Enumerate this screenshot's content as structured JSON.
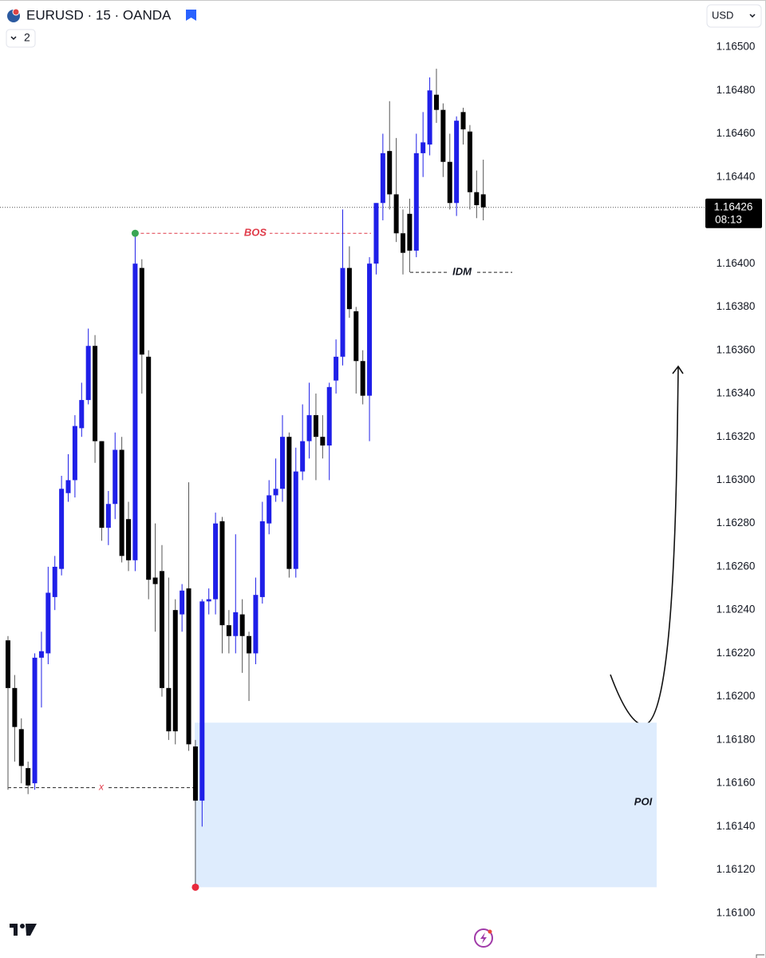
{
  "header": {
    "symbol": "EURUSD · 15 · OANDA",
    "layout_count": "2",
    "currency": "USD"
  },
  "chart_data": {
    "type": "candlestick",
    "up_color": "#1f1fe8",
    "down_color": "#000000",
    "ylim": [
      1.1609,
      1.1652
    ],
    "yticks": [
      {
        "value": 1.165,
        "label": "1.16500"
      },
      {
        "value": 1.1648,
        "label": "1.16480"
      },
      {
        "value": 1.1646,
        "label": "1.16460"
      },
      {
        "value": 1.1644,
        "label": "1.16440"
      },
      {
        "value": 1.1642,
        "label": "1.16420"
      },
      {
        "value": 1.164,
        "label": "1.16400"
      },
      {
        "value": 1.1638,
        "label": "1.16380"
      },
      {
        "value": 1.1636,
        "label": "1.16360"
      },
      {
        "value": 1.1634,
        "label": "1.16340"
      },
      {
        "value": 1.1632,
        "label": "1.16320"
      },
      {
        "value": 1.163,
        "label": "1.16300"
      },
      {
        "value": 1.1628,
        "label": "1.16280"
      },
      {
        "value": 1.1626,
        "label": "1.16260"
      },
      {
        "value": 1.1624,
        "label": "1.16240"
      },
      {
        "value": 1.1622,
        "label": "1.16220"
      },
      {
        "value": 1.162,
        "label": "1.16200"
      },
      {
        "value": 1.1618,
        "label": "1.16180"
      },
      {
        "value": 1.1616,
        "label": "1.16160"
      },
      {
        "value": 1.1614,
        "label": "1.16140"
      },
      {
        "value": 1.1612,
        "label": "1.16120"
      },
      {
        "value": 1.161,
        "label": "1.16100"
      }
    ],
    "open": [
      1.16226,
      1.16204,
      1.16185,
      1.16167,
      1.1616,
      1.16218,
      1.1622,
      1.16246,
      1.16259,
      1.16294,
      1.163,
      1.16324,
      1.16337,
      1.16362,
      1.16318,
      1.16278,
      1.16289,
      1.16314,
      1.16282,
      1.16263,
      1.16398,
      1.16357,
      1.16255,
      1.16258,
      1.16204,
      1.1624,
      1.16238,
      1.1625,
      1.16177,
      1.16152,
      1.16244,
      1.16245,
      1.16281,
      1.16233,
      1.16228,
      1.16238,
      1.16228,
      1.1622,
      1.16246,
      1.1628,
      1.16293,
      1.16296,
      1.1632,
      1.16259,
      1.16304,
      1.16318,
      1.1633,
      1.1632,
      1.16316,
      1.16346,
      1.16357,
      1.16398,
      1.16378,
      1.16355,
      1.16339,
      1.164,
      1.16428,
      1.16452,
      1.16432,
      1.16414,
      1.16423,
      1.16406,
      1.16451,
      1.16455,
      1.16478,
      1.16471,
      1.16447,
      1.16428,
      1.1647,
      1.16461,
      1.16433,
      1.16432
    ],
    "close": [
      1.16204,
      1.16186,
      1.16168,
      1.16159,
      1.16218,
      1.16221,
      1.16248,
      1.1626,
      1.16296,
      1.163,
      1.16325,
      1.16337,
      1.16362,
      1.16318,
      1.16278,
      1.16289,
      1.16314,
      1.16265,
      1.16263,
      1.164,
      1.16358,
      1.16254,
      1.16252,
      1.16204,
      1.16184,
      1.16184,
      1.16249,
      1.16178,
      1.16152,
      1.16244,
      1.16245,
      1.1628,
      1.16233,
      1.16228,
      1.16239,
      1.16228,
      1.1622,
      1.16247,
      1.16281,
      1.16293,
      1.16296,
      1.1632,
      1.16259,
      1.16304,
      1.16318,
      1.1633,
      1.1632,
      1.16316,
      1.16343,
      1.16357,
      1.16398,
      1.16379,
      1.16355,
      1.16339,
      1.164,
      1.16428,
      1.16451,
      1.16432,
      1.16414,
      1.16405,
      1.16406,
      1.16451,
      1.16456,
      1.1648,
      1.16471,
      1.16447,
      1.16428,
      1.16466,
      1.16462,
      1.16433,
      1.16427,
      1.16426
    ],
    "high": [
      1.16228,
      1.1621,
      1.1619,
      1.1617,
      1.1622,
      1.1623,
      1.1626,
      1.16265,
      1.16302,
      1.16312,
      1.1633,
      1.16345,
      1.1637,
      1.16367,
      1.16318,
      1.16295,
      1.16322,
      1.1632,
      1.1629,
      1.16414,
      1.16402,
      1.1636,
      1.1628,
      1.1627,
      1.16255,
      1.16245,
      1.16252,
      1.16299,
      1.1618,
      1.16245,
      1.1625,
      1.16285,
      1.16283,
      1.1624,
      1.16275,
      1.16245,
      1.1623,
      1.16255,
      1.1629,
      1.163,
      1.1631,
      1.1633,
      1.16322,
      1.16315,
      1.16335,
      1.16345,
      1.1634,
      1.1633,
      1.16345,
      1.16365,
      1.16425,
      1.16408,
      1.1638,
      1.1636,
      1.16403,
      1.16428,
      1.1646,
      1.16475,
      1.16458,
      1.16425,
      1.1643,
      1.1646,
      1.1647,
      1.16486,
      1.1649,
      1.16474,
      1.1646,
      1.16468,
      1.16472,
      1.16464,
      1.16443,
      1.16448
    ],
    "low": [
      1.16157,
      1.1617,
      1.1616,
      1.16155,
      1.16157,
      1.16195,
      1.16215,
      1.1624,
      1.16256,
      1.1629,
      1.16292,
      1.1632,
      1.16335,
      1.16308,
      1.16272,
      1.1627,
      1.16282,
      1.16262,
      1.16258,
      1.16258,
      1.1634,
      1.16245,
      1.1623,
      1.162,
      1.1618,
      1.16178,
      1.1623,
      1.16175,
      1.16112,
      1.1614,
      1.16238,
      1.16238,
      1.1622,
      1.1622,
      1.1622,
      1.16211,
      1.16198,
      1.16215,
      1.16243,
      1.16275,
      1.1629,
      1.1629,
      1.16255,
      1.16255,
      1.163,
      1.1631,
      1.163,
      1.1631,
      1.163,
      1.1634,
      1.16353,
      1.16375,
      1.1634,
      1.16335,
      1.16318,
      1.16395,
      1.1642,
      1.16425,
      1.1641,
      1.16395,
      1.16396,
      1.16403,
      1.1644,
      1.1645,
      1.16465,
      1.1644,
      1.16425,
      1.16422,
      1.16455,
      1.16425,
      1.16421,
      1.1642
    ],
    "last_price": {
      "value": 1.16426,
      "label": "1.16426"
    },
    "countdown": "08:13",
    "bos": {
      "label": "BOS",
      "value": 1.16414
    },
    "idm": {
      "label": "IDM",
      "value": 1.16396
    },
    "sweep": {
      "label": "x",
      "value": 1.16158
    },
    "poi": {
      "label": "POI",
      "top": 1.16188,
      "bottom": 1.16112
    }
  }
}
